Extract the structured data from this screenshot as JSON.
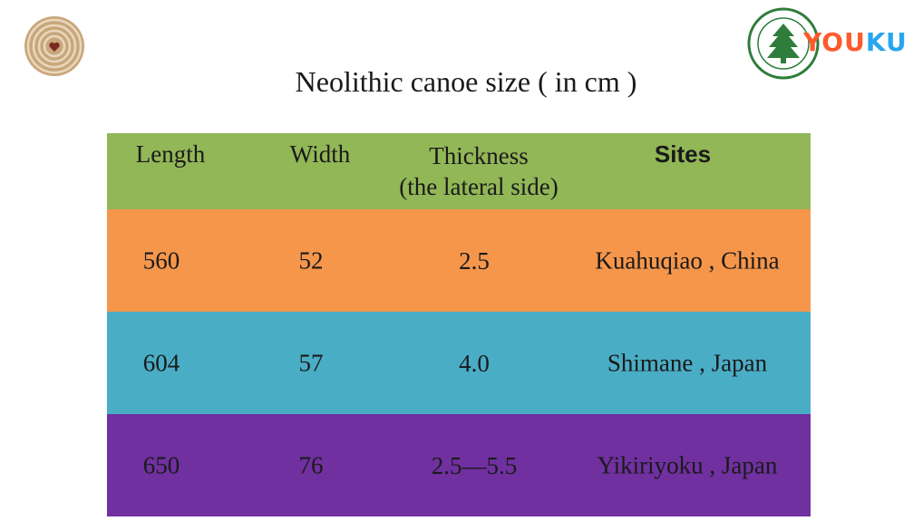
{
  "title": "Neolithic canoe size ( in cm )",
  "logo": {
    "you": "YOU",
    "ku": "KU"
  },
  "colors": {
    "header": "#92b757",
    "row1": "#f5964b",
    "row2": "#4aadc6",
    "row3": "#7030a0"
  },
  "table": {
    "headers": {
      "length": "Length",
      "width": "Width",
      "thickness": "Thickness",
      "thickness_sub": "(the lateral side)",
      "sites": "Sites"
    },
    "rows": [
      {
        "length": "560",
        "width": "52",
        "thickness": "2.5",
        "site": "Kuahuqiao , China"
      },
      {
        "length": "604",
        "width": "57",
        "thickness": "4.0",
        "site": "Shimane , Japan"
      },
      {
        "length": "650",
        "width": "76",
        "thickness": "2.5—5.5",
        "site": "Yikiriyoku , Japan"
      }
    ]
  }
}
